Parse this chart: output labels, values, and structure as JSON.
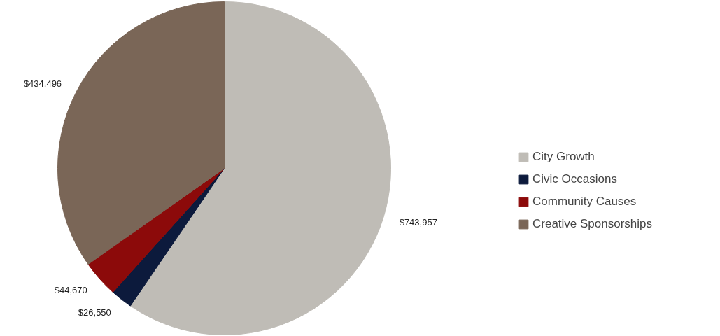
{
  "chart_data": {
    "type": "pie",
    "categories": [
      "City Growth",
      "Civic Occasions",
      "Community Causes",
      "Creative Sponsorships"
    ],
    "values": [
      743957,
      26550,
      44670,
      434496
    ],
    "colors": [
      "#bfbcb6",
      "#0c1a3c",
      "#8c0a0a",
      "#7a6657"
    ],
    "value_labels": [
      "$743,957",
      "$26,550",
      "$44,670",
      "$434,496"
    ],
    "legend": "right"
  }
}
